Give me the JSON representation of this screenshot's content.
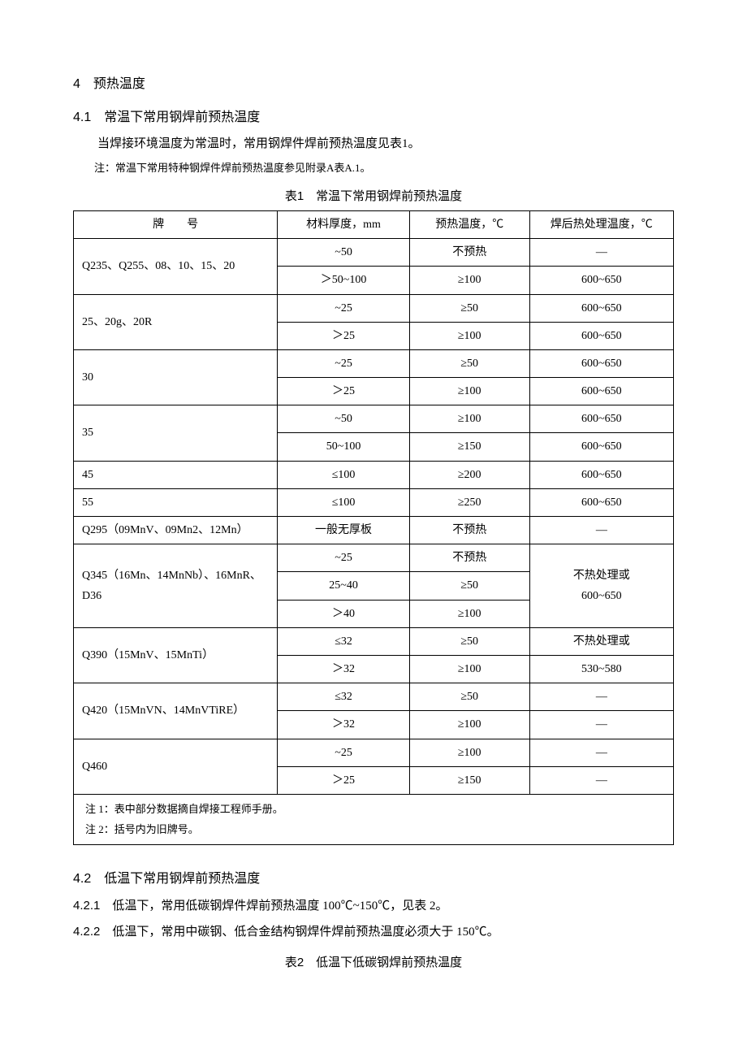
{
  "sec4": {
    "num": "4",
    "title": "预热温度"
  },
  "sec41": {
    "num": "4.1",
    "title": "常温下常用钢焊前预热温度",
    "para": "当焊接环境温度为常温时，常用钢焊件焊前预热温度见表1。",
    "note": "注：常温下常用特种钢焊件焊前预热温度参见附录A表A.1。"
  },
  "table1": {
    "caption": "表1　常温下常用钢焊前预热温度",
    "headers": {
      "grade": "牌　　号",
      "thick": "材料厚度，mm",
      "preheat": "预热温度，℃",
      "post": "焊后热处理温度，℃"
    },
    "rows": [
      {
        "grade": "Q235、Q255、08、10、15、20",
        "sub": [
          {
            "thick": "~50",
            "preheat": "不预热",
            "post": "—"
          },
          {
            "thick": "＞50~100",
            "preheat": "≥100",
            "post": "600~650"
          }
        ]
      },
      {
        "grade": "25、20g、20R",
        "sub": [
          {
            "thick": "~25",
            "preheat": "≥50",
            "post": "600~650"
          },
          {
            "thick": "＞25",
            "preheat": "≥100",
            "post": "600~650"
          }
        ]
      },
      {
        "grade": "30",
        "sub": [
          {
            "thick": "~25",
            "preheat": "≥50",
            "post": "600~650"
          },
          {
            "thick": "＞25",
            "preheat": "≥100",
            "post": "600~650"
          }
        ]
      },
      {
        "grade": "35",
        "sub": [
          {
            "thick": "~50",
            "preheat": "≥100",
            "post": "600~650"
          },
          {
            "thick": "50~100",
            "preheat": "≥150",
            "post": "600~650"
          }
        ]
      },
      {
        "grade": "45",
        "sub": [
          {
            "thick": "≤100",
            "preheat": "≥200",
            "post": "600~650"
          }
        ]
      },
      {
        "grade": "55",
        "sub": [
          {
            "thick": "≤100",
            "preheat": "≥250",
            "post": "600~650"
          }
        ]
      },
      {
        "grade": "Q295（09MnV、09Mn2、12Mn）",
        "sub": [
          {
            "thick": "一般无厚板",
            "preheat": "不预热",
            "post": "—"
          }
        ]
      },
      {
        "grade": "Q345（16Mn、14MnNb）、16MnR、D36",
        "postMerged": "不热处理或\n600~650",
        "sub": [
          {
            "thick": "~25",
            "preheat": "不预热"
          },
          {
            "thick": "25~40",
            "preheat": "≥50"
          },
          {
            "thick": "＞40",
            "preheat": "≥100"
          }
        ]
      },
      {
        "grade": "Q390（15MnV、15MnTi）",
        "sub": [
          {
            "thick": "≤32",
            "preheat": "≥50",
            "post": "不热处理或"
          },
          {
            "thick": "＞32",
            "preheat": "≥100",
            "post": "530~580"
          }
        ]
      },
      {
        "grade": "Q420（15MnVN、14MnVTiRE）",
        "sub": [
          {
            "thick": "≤32",
            "preheat": "≥50",
            "post": "—"
          },
          {
            "thick": "＞32",
            "preheat": "≥100",
            "post": "—"
          }
        ]
      },
      {
        "grade": "Q460",
        "sub": [
          {
            "thick": "~25",
            "preheat": "≥100",
            "post": "—"
          },
          {
            "thick": "＞25",
            "preheat": "≥150",
            "post": "—"
          }
        ]
      }
    ],
    "note1": "注 1：表中部分数据摘自焊接工程师手册。",
    "note2": "注 2：括号内为旧牌号。"
  },
  "sec42": {
    "num": "4.2",
    "title": "低温下常用钢焊前预热温度",
    "item1num": "4.2.1",
    "item1": "低温下，常用低碳钢焊件焊前预热温度 100℃~150℃，见表 2。",
    "item2num": "4.2.2",
    "item2": "低温下，常用中碳钢、低合金结构钢焊件焊前预热温度必须大于 150℃。"
  },
  "table2": {
    "caption": "表2　低温下低碳钢焊前预热温度"
  },
  "style": {
    "col_widths": {
      "grade": "34%",
      "thick": "22%",
      "preheat": "20%",
      "post": "24%"
    }
  }
}
